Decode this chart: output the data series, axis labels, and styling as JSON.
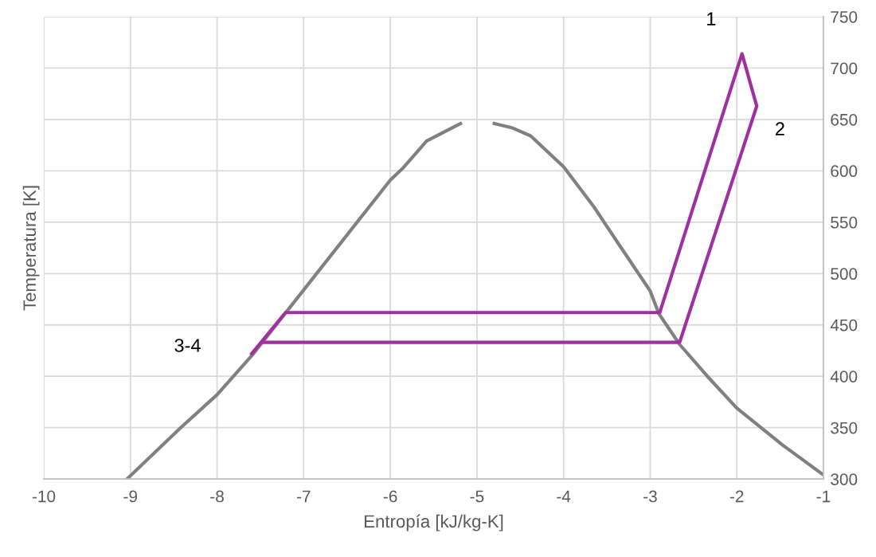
{
  "chart_data": {
    "type": "line",
    "xlabel": "Entropía [kJ/kg-K]",
    "ylabel": "Temperatura [K]",
    "series": [
      {
        "color": "#808080",
        "x": [
          -9.04,
          -8.42,
          -8.0,
          -7.59,
          -7.0,
          -6.0,
          -5.85,
          -5.58,
          -5.19
        ],
        "values": [
          300,
          350,
          382,
          421,
          484,
          591,
          603,
          629,
          646
        ]
      },
      {
        "color": "#808080",
        "x": [
          -4.8,
          -4.6,
          -4.38,
          -4.0,
          -3.65,
          -3.35,
          -3.0,
          -2.9,
          -2.66,
          -2.34,
          -2.0,
          -1.47,
          -1.0
        ],
        "values": [
          646,
          642,
          634,
          604,
          565,
          527,
          483,
          461,
          431,
          400,
          369,
          333,
          304
        ]
      },
      {
        "color": "#a0309f",
        "x": [
          -7.6,
          -7.21,
          -2.89,
          -1.94,
          -1.77,
          -2.66,
          -7.47
        ],
        "values": [
          422,
          462,
          462,
          714,
          663,
          433,
          433
        ]
      }
    ],
    "xlim": [
      -10,
      -1
    ],
    "xticks": [
      -10,
      -9,
      -8,
      -7,
      -6,
      -5,
      -4,
      -3,
      -2,
      -1
    ],
    "ylim": [
      300,
      750
    ],
    "yticks": [
      300,
      350,
      400,
      450,
      500,
      550,
      600,
      650,
      700,
      750
    ],
    "grid": true,
    "marker": "none",
    "line_style": "solid",
    "annotations": [
      {
        "text": "1",
        "x": -1.94,
        "y": 714
      },
      {
        "text": "2",
        "x": -1.77,
        "y": 663
      },
      {
        "text": "3-4",
        "x": -7.6,
        "y": 422
      }
    ]
  }
}
